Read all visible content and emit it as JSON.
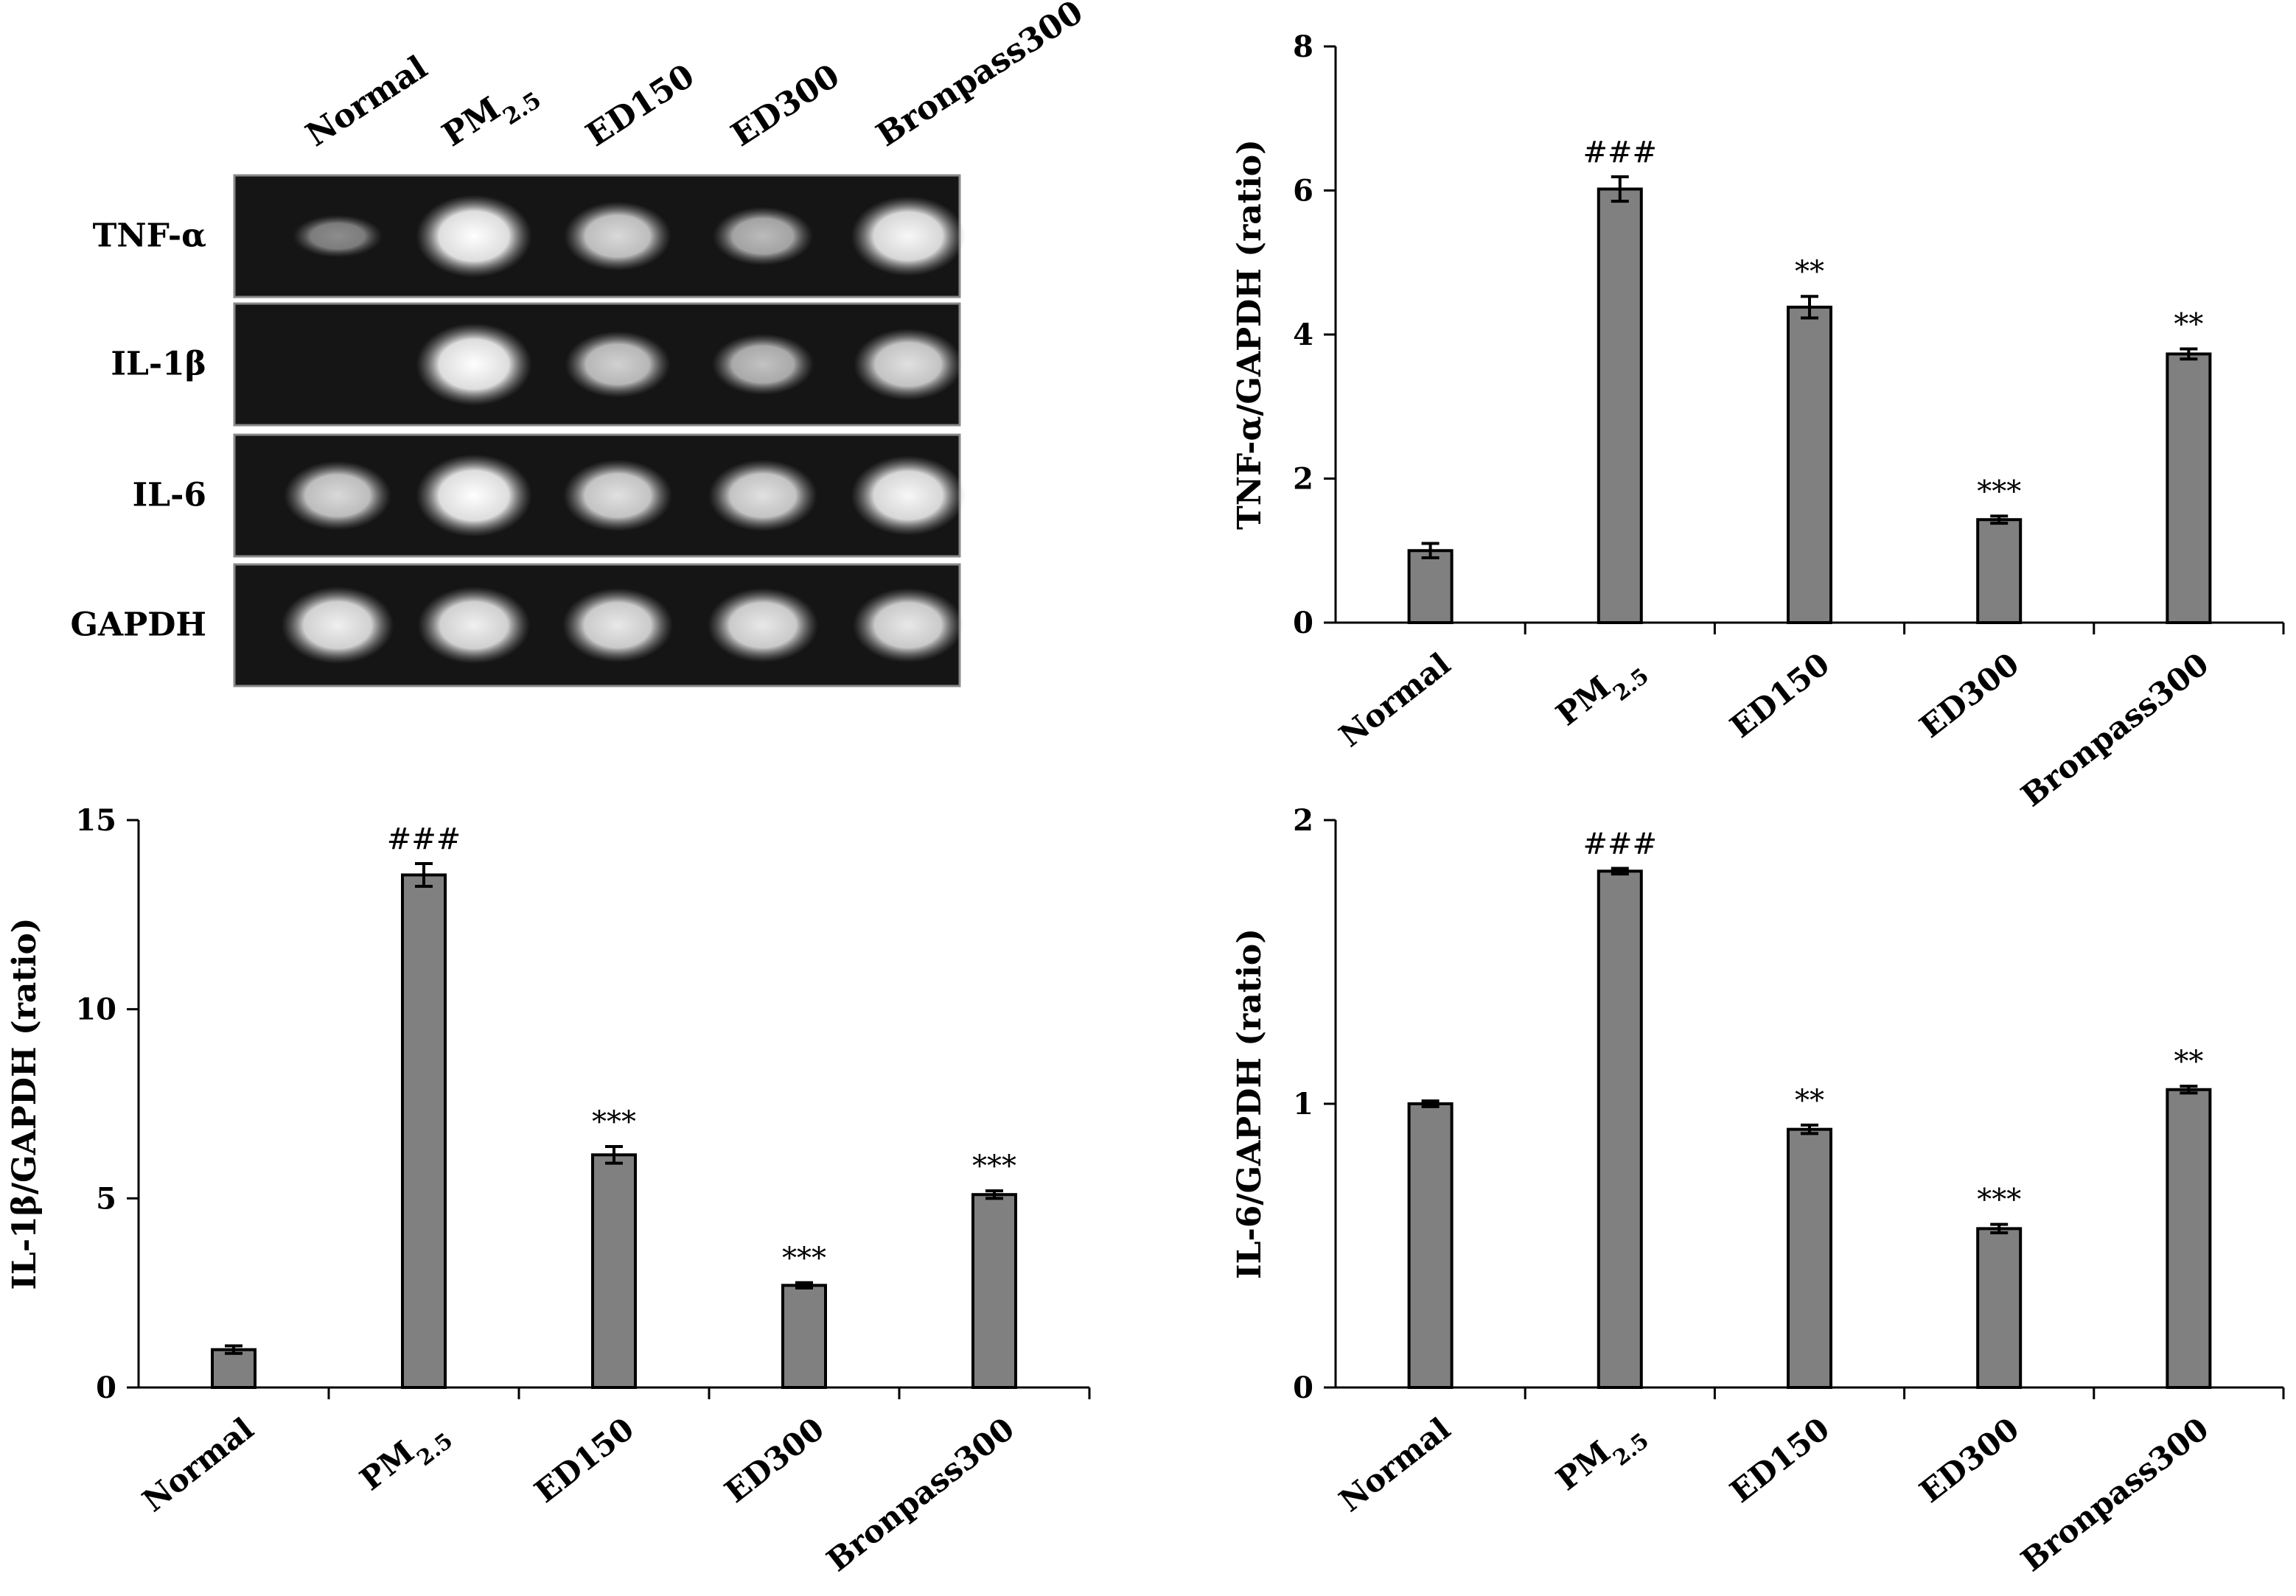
{
  "gel": {
    "lane_labels": [
      "Normal",
      "PM2.5",
      "ED150",
      "ED300",
      "Bronpass300"
    ],
    "rows": [
      {
        "label": "TNF-α",
        "bands": [
          0.25,
          1.0,
          0.75,
          0.55,
          0.95
        ]
      },
      {
        "label": "IL-1β",
        "bands": [
          0.0,
          1.0,
          0.7,
          0.6,
          0.8
        ]
      },
      {
        "label": "IL-6",
        "bands": [
          0.75,
          1.0,
          0.8,
          0.8,
          0.95
        ]
      },
      {
        "label": "GAPDH",
        "bands": [
          0.9,
          0.9,
          0.85,
          0.85,
          0.85
        ]
      }
    ]
  },
  "chart_data": [
    {
      "type": "bar",
      "categories": [
        "Normal",
        "PM2.5",
        "ED150",
        "ED300",
        "Bronpass300"
      ],
      "values": [
        1.0,
        6.02,
        4.38,
        1.43,
        3.73
      ],
      "errors": [
        0.1,
        0.17,
        0.15,
        0.05,
        0.07
      ],
      "annotations": [
        "",
        "###",
        "**",
        "***",
        "**"
      ],
      "ylabel": "TNF-α/GAPDH (ratio)",
      "ylim": [
        0,
        8
      ],
      "yticks": [
        0,
        2,
        4,
        6,
        8
      ],
      "bar_color": "#808080"
    },
    {
      "type": "bar",
      "categories": [
        "Normal",
        "PM2.5",
        "ED150",
        "ED300",
        "Bronpass300"
      ],
      "values": [
        1.0,
        13.55,
        6.15,
        2.7,
        5.1
      ],
      "errors": [
        0.1,
        0.3,
        0.22,
        0.07,
        0.1
      ],
      "annotations": [
        "",
        "###",
        "***",
        "***",
        "***"
      ],
      "ylabel": "IL-1β/GAPDH (ratio)",
      "ylim": [
        0,
        15
      ],
      "yticks": [
        0,
        5,
        10,
        15
      ],
      "bar_color": "#808080"
    },
    {
      "type": "bar",
      "categories": [
        "Normal",
        "PM2.5",
        "ED150",
        "ED300",
        "Bronpass300"
      ],
      "values": [
        1.0,
        1.82,
        0.91,
        0.56,
        1.05
      ],
      "errors": [
        0.01,
        0.01,
        0.015,
        0.015,
        0.012
      ],
      "annotations": [
        "",
        "###",
        "**",
        "***",
        "**"
      ],
      "ylabel": "IL-6/GAPDH (ratio)",
      "ylim": [
        0,
        2
      ],
      "yticks": [
        0,
        1,
        2
      ],
      "bar_color": "#808080"
    }
  ]
}
